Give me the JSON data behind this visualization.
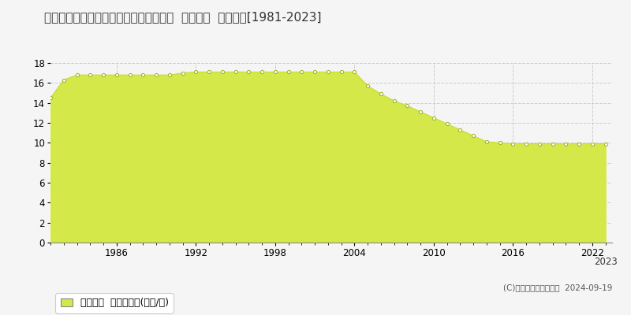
{
  "title": "青森県弘前市大字豊原２丁目１３番１８  公示地価  地価推移[1981-2023]",
  "years": [
    1981,
    1982,
    1983,
    1984,
    1985,
    1986,
    1987,
    1988,
    1989,
    1990,
    1991,
    1992,
    1993,
    1994,
    1995,
    1996,
    1997,
    1998,
    1999,
    2000,
    2001,
    2002,
    2003,
    2004,
    2005,
    2006,
    2007,
    2008,
    2009,
    2010,
    2011,
    2012,
    2013,
    2014,
    2015,
    2016,
    2017,
    2018,
    2019,
    2020,
    2021,
    2022,
    2023
  ],
  "values": [
    14.5,
    16.3,
    16.8,
    16.8,
    16.8,
    16.8,
    16.8,
    16.8,
    16.8,
    16.8,
    17.0,
    17.1,
    17.1,
    17.1,
    17.1,
    17.1,
    17.1,
    17.1,
    17.1,
    17.1,
    17.1,
    17.1,
    17.1,
    17.1,
    15.7,
    14.9,
    14.2,
    13.7,
    13.1,
    12.5,
    11.9,
    11.3,
    10.7,
    10.1,
    10.0,
    9.9,
    9.9,
    9.9,
    9.9,
    9.9,
    9.9,
    9.9,
    9.9
  ],
  "fill_color": "#d4e84a",
  "line_color": "#c8dc3c",
  "marker_facecolor": "#ffffff",
  "marker_edgecolor": "#a0b830",
  "background_color": "#f5f5f5",
  "plot_bg_color": "#f5f5f5",
  "grid_color": "#cccccc",
  "ylim": [
    0,
    18
  ],
  "yticks": [
    0,
    2,
    4,
    6,
    8,
    10,
    12,
    14,
    16,
    18
  ],
  "xticks": [
    1986,
    1992,
    1998,
    2004,
    2010,
    2016,
    2022
  ],
  "extra_xtick": 2023,
  "legend_label": "公示地価  平均坪単価(万円/坪)",
  "copyright_text": "(C)土地価格ドットコム  2024-09-19",
  "title_fontsize": 11,
  "axis_fontsize": 8.5,
  "legend_fontsize": 9
}
